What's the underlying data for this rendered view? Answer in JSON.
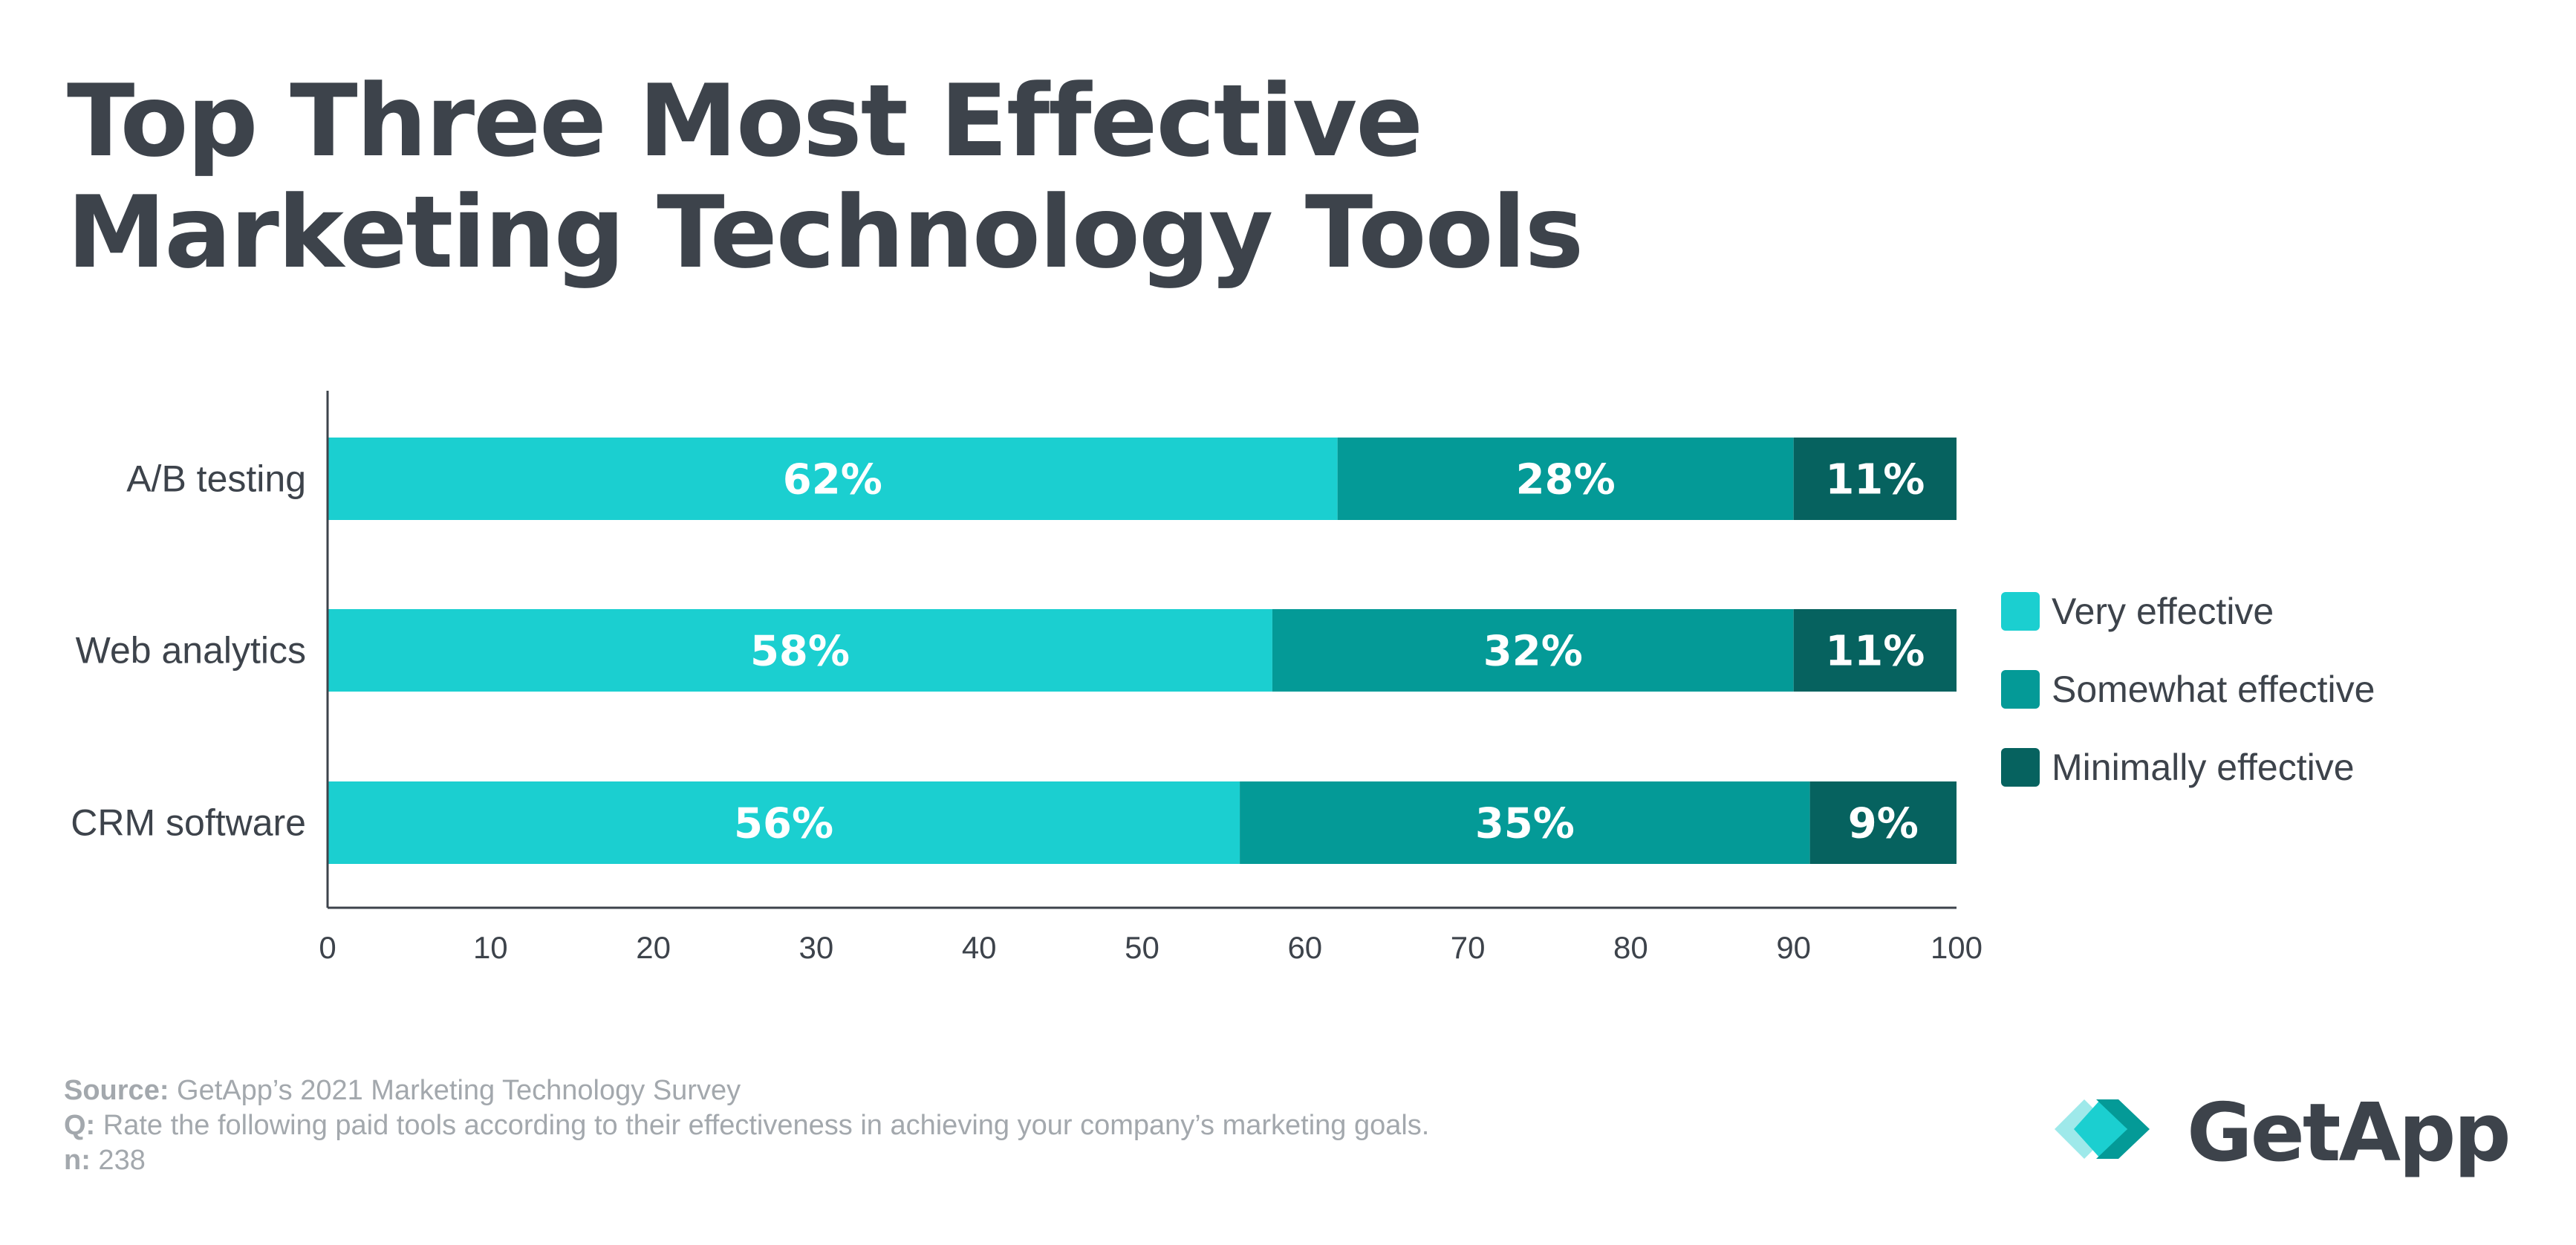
{
  "title": {
    "line1": "Top Three Most Effective",
    "line2": "Marketing Technology Tools"
  },
  "chart_data": {
    "type": "bar",
    "orientation": "horizontal",
    "stacked": true,
    "categories": [
      "A/B testing",
      "Web analytics",
      "CRM software"
    ],
    "series": [
      {
        "name": "Very effective",
        "values": [
          62,
          58,
          56
        ],
        "labels": [
          "62%",
          "58%",
          "56%"
        ],
        "color": "#1bcfd0"
      },
      {
        "name": "Somewhat effective",
        "values": [
          28,
          32,
          35
        ],
        "labels": [
          "28%",
          "32%",
          "35%"
        ],
        "color": "#049a97"
      },
      {
        "name": "Minimally effective",
        "values": [
          11,
          11,
          9
        ],
        "labels": [
          "11%",
          "11%",
          "9%"
        ],
        "color": "#06625f"
      }
    ],
    "xlim": [
      0,
      100
    ],
    "xticks": [
      0,
      10,
      20,
      30,
      40,
      50,
      60,
      70,
      80,
      90,
      100
    ],
    "xlabel": "",
    "ylabel": "",
    "grid": false,
    "legend": "right"
  },
  "footer": {
    "source_label": "Source:",
    "source_text": " GetApp’s 2021 Marketing Technology Survey",
    "q_label": "Q:",
    "q_text": " Rate the following paid tools according to their effectiveness in achieving your company’s marketing goals.",
    "n_label": "n:",
    "n_text": " 238"
  },
  "logo": {
    "text": "GetApp",
    "color": "#3d434b",
    "mark_colors": [
      "#9ee9ea",
      "#1bcfd0",
      "#049a97"
    ]
  }
}
